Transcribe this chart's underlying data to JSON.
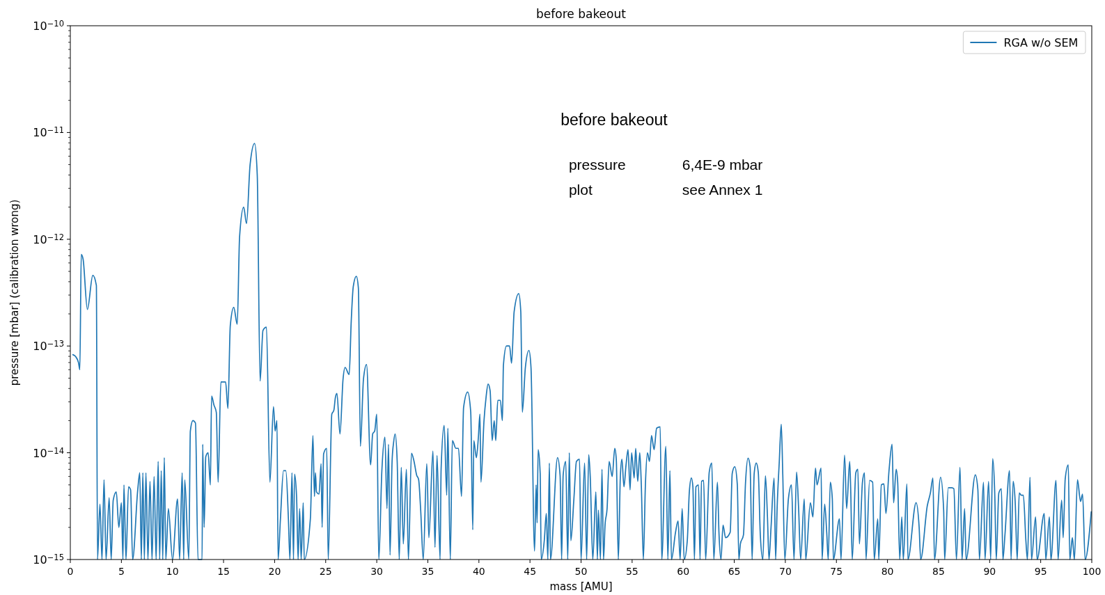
{
  "chart_data": {
    "type": "line",
    "title": "before bakeout",
    "xlabel": "mass [AMU]",
    "ylabel": "pressure [mbar] (calibration wrong)",
    "annotations": [
      "before bakeout",
      "pressure",
      "6,4E-9 mbar",
      "plot",
      "see Annex 1"
    ],
    "log": "y",
    "legend": "top right",
    "xlim": [
      0,
      100
    ],
    "ylim": [
      1e-15,
      1e-10
    ],
    "xticks": [
      0,
      5,
      10,
      15,
      20,
      25,
      30,
      35,
      40,
      45,
      50,
      55,
      60,
      65,
      70,
      75,
      80,
      85,
      90,
      95,
      100
    ],
    "yticks": [
      {
        "value": 1e-15,
        "label": "10$^{−15}$"
      },
      {
        "value": 2e-15,
        "label": null
      },
      {
        "value": 3e-15,
        "label": null
      },
      {
        "value": 4e-15,
        "label": null
      },
      {
        "value": 5e-15,
        "label": null
      },
      {
        "value": 6e-15,
        "label": null
      },
      {
        "value": 7e-15,
        "label": null
      },
      {
        "value": 8e-15,
        "label": null
      },
      {
        "value": 9e-15,
        "label": null
      },
      {
        "value": 1e-14,
        "label": "10$^{−14}$"
      },
      {
        "value": 2e-14,
        "label": null
      },
      {
        "value": 3e-14,
        "label": null
      },
      {
        "value": 4e-14,
        "label": null
      },
      {
        "value": 5e-14,
        "label": null
      },
      {
        "value": 6e-14,
        "label": null
      },
      {
        "value": 7e-14,
        "label": null
      },
      {
        "value": 8e-14,
        "label": null
      },
      {
        "value": 9e-14,
        "label": null
      },
      {
        "value": 1e-13,
        "label": "10$^{−13}$"
      },
      {
        "value": 2e-13,
        "label": null
      },
      {
        "value": 3e-13,
        "label": null
      },
      {
        "value": 4e-13,
        "label": null
      },
      {
        "value": 5e-13,
        "label": null
      },
      {
        "value": 6e-13,
        "label": null
      },
      {
        "value": 7e-13,
        "label": null
      },
      {
        "value": 8e-13,
        "label": null
      },
      {
        "value": 9e-13,
        "label": null
      },
      {
        "value": 1e-12,
        "label": "10$^{−12}$"
      },
      {
        "value": 2e-12,
        "label": null
      },
      {
        "value": 3e-12,
        "label": null
      },
      {
        "value": 4e-12,
        "label": null
      },
      {
        "value": 5e-12,
        "label": null
      },
      {
        "value": 6e-12,
        "label": null
      },
      {
        "value": 7e-12,
        "label": null
      },
      {
        "value": 8e-12,
        "label": null
      },
      {
        "value": 9e-12,
        "label": null
      },
      {
        "value": 1e-11,
        "label": "10$^{−11}$"
      },
      {
        "value": 2e-11,
        "label": null
      },
      {
        "value": 3e-11,
        "label": null
      },
      {
        "value": 4e-11,
        "label": null
      },
      {
        "value": 5e-11,
        "label": null
      },
      {
        "value": 6e-11,
        "label": null
      },
      {
        "value": 7e-11,
        "label": null
      },
      {
        "value": 8e-11,
        "label": null
      },
      {
        "value": 9e-11,
        "label": null
      },
      {
        "value": 1e-10,
        "label": "10$^{−10}$"
      }
    ],
    "series": [
      {
        "name": "RGA w/o SEM",
        "color": "#1f77b4",
        "x": [
          0.25,
          0.5,
          0.8,
          0.93,
          1.07,
          1.25,
          1.67,
          2.2,
          2.55,
          2.66,
          2.9,
          3.1,
          3.3,
          3.5,
          3.8,
          4.0,
          4.2,
          4.5,
          4.75,
          5.0,
          5.15,
          5.25,
          5.45,
          5.7,
          5.9,
          6.1,
          6.6,
          6.8,
          6.95,
          7.1,
          7.25,
          7.4,
          7.6,
          7.8,
          8.0,
          8.2,
          8.4,
          8.6,
          8.75,
          8.9,
          9.05,
          9.2,
          9.35,
          9.6,
          10.0,
          10.5,
          10.7,
          10.95,
          11.1,
          11.2,
          11.6,
          11.75,
          12.0,
          12.25,
          12.5,
          12.9,
          12.96,
          13.1,
          13.26,
          13.49,
          13.71,
          13.83,
          14.06,
          14.29,
          14.47,
          14.74,
          15.2,
          15.43,
          15.66,
          16.0,
          16.34,
          16.57,
          16.97,
          17.25,
          17.6,
          18.04,
          18.3,
          18.58,
          18.86,
          19.2,
          19.54,
          19.89,
          20.05,
          20.23,
          20.34,
          20.57,
          20.87,
          21.1,
          21.35,
          21.5,
          21.7,
          21.85,
          21.95,
          22.15,
          22.3,
          22.45,
          22.6,
          22.8,
          22.9,
          23.5,
          23.75,
          23.9,
          24.0,
          24.1,
          24.35,
          24.55,
          24.65,
          24.8,
          25.1,
          25.25,
          25.6,
          25.8,
          25.95,
          26.1,
          26.4,
          26.7,
          26.9,
          27.3,
          27.5,
          27.7,
          28.0,
          28.2,
          28.4,
          28.7,
          29.0,
          29.4,
          29.6,
          29.8,
          30.0,
          30.2,
          30.5,
          30.8,
          31.0,
          31.15,
          31.3,
          31.5,
          31.65,
          31.8,
          32.0,
          32.2,
          32.4,
          32.6,
          32.9,
          33.1,
          33.4,
          33.65,
          33.9,
          34.1,
          34.3,
          34.55,
          34.9,
          35.1,
          35.5,
          35.7,
          35.9,
          36.2,
          36.3,
          36.6,
          36.85,
          36.96,
          37.2,
          37.4,
          37.75,
          38.0,
          38.3,
          38.5,
          38.9,
          39.2,
          39.4,
          39.5,
          39.75,
          39.95,
          40.1,
          40.2,
          40.5,
          40.7,
          40.9,
          41.1,
          41.3,
          41.5,
          41.65,
          41.85,
          42.1,
          42.3,
          42.4,
          42.7,
          43.0,
          43.2,
          43.45,
          43.9,
          44.1,
          44.25,
          44.55,
          44.9,
          45.1,
          45.45,
          45.6,
          45.7,
          45.8,
          46.0,
          46.1,
          46.4,
          46.6,
          46.75,
          46.9,
          47.0,
          47.7,
          47.95,
          48.1,
          48.25,
          48.5,
          48.7,
          48.85,
          49.0,
          49.3,
          49.55,
          49.85,
          50.0,
          50.35,
          50.55,
          50.75,
          50.9,
          51.15,
          51.45,
          51.6,
          51.7,
          51.9,
          52.05,
          52.2,
          52.35,
          52.55,
          52.75,
          53.05,
          53.3,
          53.45,
          53.65,
          53.85,
          54.0,
          54.2,
          54.4,
          54.6,
          54.8,
          54.95,
          55.2,
          55.35,
          55.55,
          55.75,
          55.9,
          56.1,
          56.3,
          56.5,
          56.7,
          56.9,
          57.15,
          57.4,
          57.75,
          57.9,
          58.3,
          58.5,
          58.7,
          58.85,
          59.25,
          59.5,
          59.7,
          59.9,
          60.1,
          60.4,
          60.6,
          60.8,
          60.95,
          61.1,
          61.25,
          61.5,
          61.65,
          61.8,
          62.0,
          62.2,
          62.55,
          62.8,
          63.0,
          63.35,
          63.5,
          63.7,
          63.9,
          64.15,
          64.6,
          64.8,
          65.05,
          65.3,
          65.45,
          65.6,
          65.9,
          66.1,
          66.35,
          66.55,
          66.75,
          66.95,
          67.15,
          67.35,
          67.55,
          67.8,
          68.05,
          68.25,
          68.4,
          68.6,
          68.9,
          69.05,
          69.2,
          69.4,
          69.6,
          69.75,
          69.95,
          70.3,
          70.6,
          70.85,
          71.1,
          71.3,
          71.5,
          71.85,
          72.0,
          72.45,
          72.7,
          72.95,
          73.1,
          73.5,
          73.6,
          73.85,
          74.05,
          74.2,
          74.4,
          74.6,
          74.7,
          75.3,
          75.45,
          75.8,
          76.0,
          76.3,
          76.4,
          76.55,
          76.9,
          77.1,
          77.25,
          77.55,
          77.75,
          77.9,
          78.25,
          78.55,
          78.7,
          79.05,
          79.15,
          79.4,
          79.65,
          79.85,
          80.15,
          80.45,
          80.6,
          80.85,
          81.0,
          81.2,
          81.4,
          81.55,
          81.9,
          82.0,
          82.8,
          83.1,
          83.25,
          83.9,
          84.2,
          84.45,
          84.6,
          85.2,
          85.5,
          85.6,
          85.95,
          86.3,
          86.5,
          86.75,
          87.1,
          87.3,
          87.55,
          87.7,
          88.6,
          88.85,
          89.0,
          89.4,
          89.55,
          89.9,
          90.1,
          90.3,
          90.5,
          90.65,
          90.9,
          91.15,
          91.3,
          91.5,
          91.95,
          92.1,
          92.3,
          92.5,
          92.7,
          92.9,
          93.1,
          93.3,
          93.55,
          93.7,
          93.95,
          94.1,
          94.5,
          94.65,
          95.35,
          95.5,
          95.85,
          96.0,
          96.5,
          96.7,
          97.05,
          97.2,
          97.4,
          97.7,
          97.85,
          98.1,
          98.3,
          98.6,
          98.9,
          99.1,
          99.35,
          99.95
        ],
        "values": [
          8.3e-14,
          8e-14,
          7e-14,
          6e-14,
          7.2e-13,
          6.5e-13,
          2.2e-13,
          4.6e-13,
          3.7e-13,
          1e-15,
          3.3e-15,
          1e-15,
          5.6e-15,
          1e-15,
          3.8e-15,
          1e-15,
          3.6e-15,
          4.3e-15,
          2e-15,
          3.4e-15,
          1e-15,
          5e-15,
          1e-15,
          4.8e-15,
          4.5e-15,
          1e-15,
          4.5e-15,
          6.5e-15,
          1e-15,
          6.5e-15,
          1e-15,
          6.5e-15,
          1e-15,
          5.4e-15,
          1e-15,
          6e-15,
          1e-15,
          8.3e-15,
          1e-15,
          6.8e-15,
          1e-15,
          9e-15,
          1e-15,
          3e-15,
          1e-15,
          3.7e-15,
          1e-15,
          6.5e-15,
          1e-15,
          5.6e-15,
          1e-15,
          1.6e-14,
          2e-14,
          1.9e-14,
          1e-15,
          1e-15,
          1.2e-14,
          2e-15,
          9.2e-15,
          1e-14,
          5e-15,
          3.4e-14,
          2.8e-14,
          2.4e-14,
          5.3e-15,
          4.6e-14,
          4.6e-14,
          2.6e-14,
          1.55e-13,
          2.3e-13,
          1.6e-13,
          1.05e-12,
          2e-12,
          1.4e-12,
          5e-12,
          7.9e-12,
          4e-12,
          4.7e-14,
          1.4e-13,
          1.5e-13,
          5.3e-15,
          2.7e-14,
          1.6e-14,
          2e-14,
          1e-15,
          2.4e-15,
          6.8e-15,
          6.8e-15,
          2.4e-15,
          1e-15,
          6.5e-15,
          1e-15,
          6.3e-15,
          3.9e-15,
          1e-15,
          3e-15,
          1e-15,
          3.4e-15,
          1e-15,
          2.4e-15,
          1.45e-14,
          3.9e-15,
          6.5e-15,
          4.3e-15,
          4.1e-15,
          7.9e-15,
          2e-15,
          9.8e-15,
          1.1e-14,
          1e-15,
          2.3e-14,
          2.5e-14,
          3.3e-14,
          3.6e-14,
          1.5e-14,
          4.9e-14,
          6.3e-14,
          5.4e-14,
          1.7e-13,
          3.6e-13,
          4.5e-13,
          3.5e-13,
          1.15e-14,
          4.9e-14,
          6.7e-14,
          7.7e-15,
          1.5e-14,
          1.6e-14,
          2.3e-14,
          1e-15,
          6.8e-15,
          1.4e-14,
          3e-15,
          1.2e-14,
          1.1e-15,
          8.3e-15,
          1.25e-14,
          1.5e-14,
          8.3e-15,
          1e-15,
          7.3e-15,
          1.4e-15,
          7e-15,
          1e-15,
          9.9e-15,
          8.3e-15,
          6.2e-15,
          5.6e-15,
          2.9e-15,
          1e-15,
          7.9e-15,
          1.6e-15,
          1.04e-14,
          1.3e-15,
          9.4e-15,
          1e-15,
          7e-15,
          1.8e-14,
          4e-15,
          1.7e-14,
          1e-15,
          1.3e-14,
          1.1e-14,
          1.1e-14,
          3.9e-15,
          2.65e-14,
          3.7e-14,
          2.4e-14,
          1.9e-15,
          1.3e-14,
          9e-15,
          1.4e-14,
          2.3e-14,
          5.3e-15,
          2e-14,
          3.3e-14,
          4.4e-14,
          3.8e-14,
          1.3e-14,
          2e-14,
          1.3e-14,
          3.1e-14,
          3.1e-14,
          2e-14,
          6.6e-14,
          1e-13,
          1e-13,
          6.9e-14,
          2.1e-13,
          3.1e-13,
          2.1e-13,
          2.4e-14,
          6.3e-14,
          9.1e-14,
          6.3e-14,
          1.2e-15,
          5e-15,
          2.2e-15,
          1.07e-14,
          6.4e-15,
          1e-15,
          1.5e-15,
          2.7e-15,
          1e-15,
          8e-15,
          1e-15,
          9e-15,
          6.1e-15,
          1e-15,
          6.2e-15,
          8.3e-15,
          1e-15,
          1e-14,
          1.5e-15,
          3.7e-15,
          8.3e-15,
          8.7e-15,
          1e-15,
          8e-15,
          1e-15,
          9.6e-15,
          6e-15,
          1e-15,
          4.3e-15,
          1e-15,
          2.9e-15,
          1e-15,
          7e-15,
          1e-15,
          2.1e-15,
          3e-15,
          8.3e-15,
          6e-15,
          1.1e-14,
          8.7e-15,
          1e-15,
          6.1e-15,
          8.7e-15,
          4.8e-15,
          7.6e-15,
          1.07e-14,
          4.5e-15,
          1e-14,
          5.8e-15,
          1.1e-14,
          5.4e-15,
          1e-14,
          5e-15,
          1e-15,
          5e-15,
          1e-14,
          8.3e-15,
          1.45e-14,
          1.07e-14,
          1.7e-14,
          1.75e-14,
          1e-15,
          1.15e-14,
          1e-15,
          6.8e-15,
          1e-15,
          1.8e-15,
          2.3e-15,
          1e-15,
          3e-15,
          1e-15,
          1.5e-15,
          4.3e-15,
          5.8e-15,
          4.8e-15,
          1e-15,
          4.8e-15,
          5e-15,
          1e-15,
          5.4e-15,
          5.5e-15,
          1e-15,
          6.6e-15,
          8e-15,
          1e-15,
          5.3e-15,
          1.8e-15,
          1e-15,
          2.1e-15,
          1.6e-15,
          1.8e-15,
          6.4e-15,
          7.4e-15,
          5e-15,
          1e-15,
          1.4e-15,
          1.7e-15,
          5.2e-15,
          8.9e-15,
          7.4e-15,
          1e-15,
          6.4e-15,
          8e-15,
          6.6e-15,
          1.7e-15,
          1e-15,
          6.1e-15,
          2.5e-15,
          1e-15,
          2e-15,
          5.8e-15,
          1e-15,
          3.1e-15,
          8e-15,
          1.85e-14,
          6.2e-15,
          1e-15,
          3.7e-15,
          5e-15,
          1e-15,
          6.6e-15,
          3e-15,
          1e-15,
          3.7e-15,
          1e-15,
          3.4e-15,
          2.5e-15,
          7.2e-15,
          5e-15,
          7.2e-15,
          1e-15,
          3.3e-15,
          1.8e-15,
          1e-15,
          5.3e-15,
          3.7e-15,
          1e-15,
          2.4e-15,
          1e-15,
          9.5e-15,
          3e-15,
          8.3e-15,
          4.5e-15,
          1e-15,
          6.5e-15,
          7e-15,
          1.4e-15,
          5.3e-15,
          6.5e-15,
          1e-15,
          5.5e-15,
          5.3e-15,
          1e-15,
          2.4e-15,
          1e-15,
          5e-15,
          5.1e-15,
          2.7e-15,
          6.8e-15,
          1.2e-14,
          3.4e-15,
          7e-15,
          5.3e-15,
          1e-15,
          2.5e-15,
          1e-15,
          5.1e-15,
          1e-15,
          3.4e-15,
          2e-15,
          1e-15,
          3.2e-15,
          4.2e-15,
          5.8e-15,
          1e-15,
          5.9e-15,
          2.9e-15,
          1e-15,
          4.7e-15,
          4.7e-15,
          4.6e-15,
          1e-15,
          7.3e-15,
          1e-15,
          3e-15,
          1e-15,
          6.2e-15,
          4.5e-15,
          1e-15,
          5.3e-15,
          1e-15,
          5.4e-15,
          1e-15,
          8.8e-15,
          4.2e-15,
          1e-15,
          4.2e-15,
          4.6e-15,
          1e-15,
          1.7e-15,
          6.8e-15,
          1e-15,
          5.4e-15,
          3.5e-15,
          1e-15,
          4.2e-15,
          4e-15,
          4e-15,
          1.5e-15,
          1e-15,
          5.9e-15,
          1e-15,
          2.5e-15,
          1e-15,
          2.7e-15,
          1e-15,
          2.5e-15,
          1e-15,
          5.5e-15,
          1e-15,
          3.6e-15,
          1.6e-15,
          5.7e-15,
          7.7e-15,
          1e-15,
          1.6e-15,
          1e-15,
          5.6e-15,
          3.5e-15,
          4.1e-15,
          1e-15,
          2.8e-15
        ]
      }
    ]
  }
}
